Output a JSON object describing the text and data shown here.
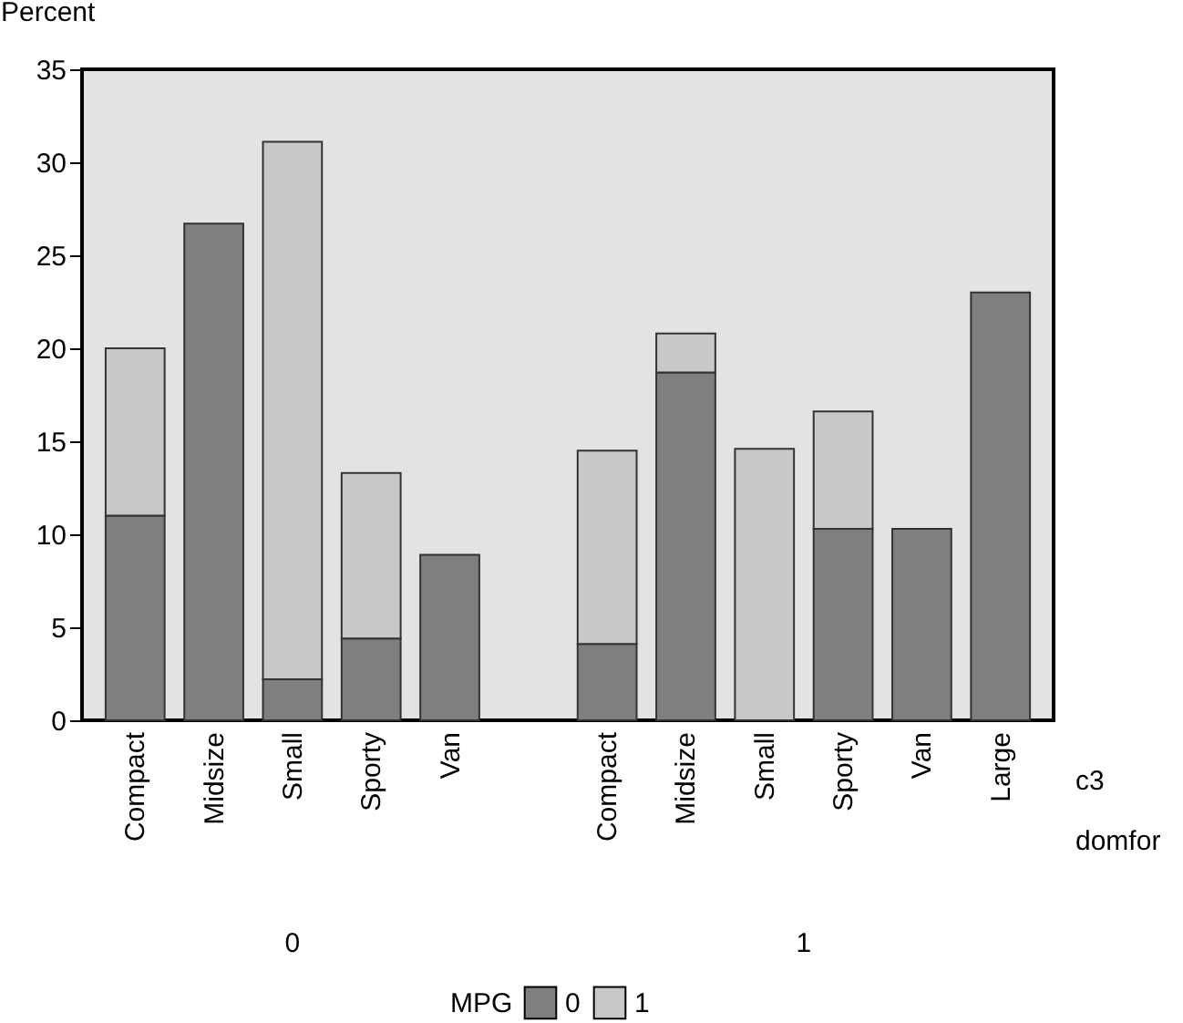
{
  "chart_data": {
    "type": "bar",
    "stacked": true,
    "ylabel": "Percent",
    "legend_title": "MPG",
    "categories": [
      "Compact",
      "Midsize",
      "Small",
      "Sporty",
      "Van",
      null,
      "Compact",
      "Midsize",
      "Small",
      "Sporty",
      "Van",
      "Large"
    ],
    "series": [
      {
        "name": "0",
        "color": "#7f7f7f",
        "values": [
          11.0,
          26.7,
          2.2,
          4.4,
          8.9,
          null,
          4.1,
          18.7,
          null,
          10.3,
          10.3,
          23.0
        ]
      },
      {
        "name": "1",
        "color": "#c8c8c8",
        "values": [
          9.0,
          null,
          28.9,
          8.9,
          null,
          null,
          10.4,
          2.1,
          14.6,
          6.3,
          null,
          null
        ]
      }
    ],
    "ylim": [
      0,
      35
    ],
    "yticks": [
      0,
      5,
      10,
      15,
      20,
      25,
      30,
      35
    ],
    "annotations": [
      "c3",
      "domfor",
      "0",
      "1"
    ],
    "grid": false,
    "legend": "bottom"
  }
}
